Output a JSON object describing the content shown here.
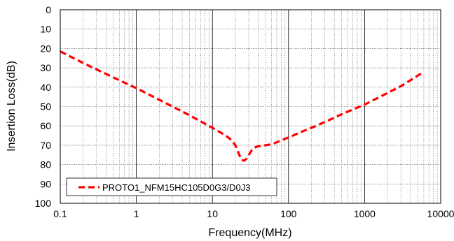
{
  "chart_data": {
    "type": "line",
    "xscale": "log",
    "xlim": [
      0.1,
      10000
    ],
    "ylim": [
      0,
      100
    ],
    "y_inverted": true,
    "xlabel": "Frequency(MHz)",
    "ylabel": "Insertion Loss(dB)",
    "x_ticks": [
      "0.1",
      "1",
      "10",
      "100",
      "1000",
      "10000"
    ],
    "y_ticks": [
      "0",
      "10",
      "20",
      "30",
      "40",
      "50",
      "60",
      "70",
      "80",
      "90",
      "100"
    ],
    "grid": true,
    "legend_position": "bottom-left",
    "series": [
      {
        "name": "PROTO1_NFM15HC105D0G3/D0J3",
        "color": "#ff0000",
        "line_style": "dashed",
        "x": [
          0.1,
          0.2,
          0.5,
          1,
          2,
          5,
          10,
          15,
          18,
          20,
          22,
          24,
          26,
          28,
          30,
          33,
          36,
          40,
          45,
          50,
          60,
          70,
          80,
          100,
          150,
          200,
          300,
          500,
          700,
          1000,
          2000,
          3000,
          5500
        ],
        "y": [
          21.5,
          27.5,
          35,
          40.5,
          46.5,
          54.5,
          61,
          65,
          67.5,
          70,
          74,
          77.5,
          78,
          77,
          75,
          72.5,
          71.2,
          70.5,
          70.3,
          70,
          69.5,
          68.5,
          67.5,
          66,
          63,
          61,
          58,
          54,
          51.5,
          49,
          43,
          39.5,
          33
        ]
      }
    ]
  }
}
